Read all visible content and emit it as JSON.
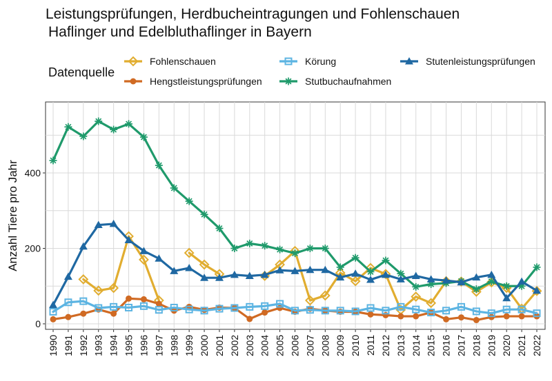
{
  "chart_data": {
    "type": "line",
    "title": "Leistungsprüfungen, Herdbucheintragungen und Fohlenschauen",
    "subtitle": "Haflinger und Edelbluthaflinger in Bayern",
    "xlabel": "",
    "ylabel": "Anzahl Tiere pro Jahr",
    "legend_title": "Datenquelle",
    "legend_position": "top",
    "grid": true,
    "ylim": [
      0,
      560
    ],
    "yticks": [
      0,
      200,
      400
    ],
    "x": [
      1990,
      1991,
      1992,
      1993,
      1994,
      1995,
      1996,
      1997,
      1998,
      1999,
      2000,
      2001,
      2002,
      2003,
      2004,
      2005,
      2006,
      2007,
      2008,
      2009,
      2010,
      2011,
      2012,
      2013,
      2014,
      2015,
      2016,
      2017,
      2018,
      2019,
      2020,
      2021,
      2022
    ],
    "series": [
      {
        "name": "Fohlenschauen",
        "color": "#E1AD30",
        "marker": "diamond",
        "values": [
          null,
          null,
          118,
          88,
          95,
          232,
          170,
          62,
          null,
          188,
          157,
          132,
          null,
          null,
          127,
          157,
          193,
          62,
          75,
          135,
          113,
          148,
          132,
          37,
          72,
          55,
          113,
          112,
          85,
          110,
          95,
          40,
          87
        ]
      },
      {
        "name": "Hengstleistungsprüfungen",
        "color": "#D06A23",
        "marker": "circle",
        "values": [
          12,
          18,
          27,
          38,
          27,
          67,
          65,
          53,
          35,
          45,
          37,
          43,
          42,
          13,
          30,
          42,
          32,
          40,
          35,
          32,
          32,
          25,
          23,
          20,
          20,
          30,
          12,
          17,
          10,
          18,
          20,
          20,
          20
        ]
      },
      {
        "name": "Körung",
        "color": "#5CB4E2",
        "marker": "square",
        "values": [
          32,
          57,
          60,
          42,
          45,
          43,
          47,
          37,
          43,
          38,
          35,
          40,
          42,
          45,
          47,
          53,
          35,
          37,
          35,
          35,
          33,
          42,
          35,
          45,
          38,
          30,
          35,
          45,
          33,
          28,
          38,
          38,
          28
        ]
      },
      {
        "name": "Stutbuchaufnahmen",
        "color": "#1F9A6B",
        "marker": "asterisk",
        "values": [
          433,
          522,
          497,
          537,
          515,
          530,
          495,
          420,
          360,
          325,
          290,
          253,
          200,
          213,
          207,
          197,
          187,
          200,
          200,
          150,
          175,
          138,
          168,
          133,
          98,
          105,
          108,
          113,
          92,
          112,
          100,
          100,
          150
        ]
      },
      {
        "name": "Stutenleistungsprüfungen",
        "color": "#1F68A2",
        "marker": "triangle",
        "values": [
          50,
          125,
          205,
          262,
          265,
          222,
          193,
          173,
          140,
          148,
          122,
          122,
          130,
          127,
          130,
          142,
          140,
          143,
          143,
          123,
          133,
          117,
          130,
          118,
          127,
          118,
          115,
          110,
          123,
          130,
          68,
          112,
          88
        ]
      }
    ]
  }
}
